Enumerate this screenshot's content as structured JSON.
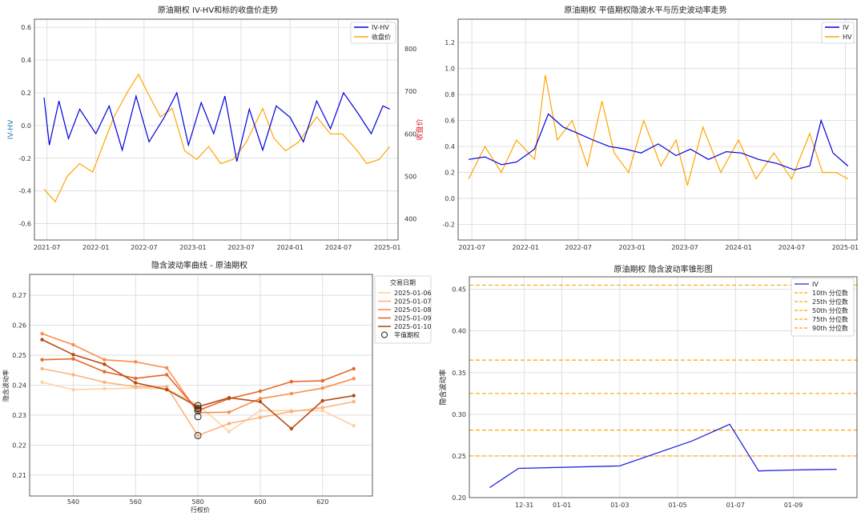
{
  "chart_data": [
    {
      "id": "c1",
      "type": "line",
      "title": "原油期权 IV-HV和标的收盘价走势",
      "ylabel": "IV-HV",
      "ylabel_right": "收盘价",
      "left_ylim": [
        -0.7,
        0.65
      ],
      "right_ylim": [
        350,
        870
      ],
      "left_ticks": [
        -0.6,
        -0.4,
        -0.2,
        0.0,
        0.2,
        0.4,
        0.6
      ],
      "right_ticks": [
        400,
        500,
        600,
        700,
        800
      ],
      "left_tick_labels": [
        "-0.6",
        "-0.4",
        "-0.2",
        "0.0",
        "0.2",
        "0.4",
        "0.6"
      ],
      "right_tick_labels": [
        "400",
        "500",
        "600",
        "700",
        "800"
      ],
      "x_tick_labels": [
        "2021-07",
        "2022-01",
        "2022-07",
        "2023-01",
        "2023-07",
        "2024-01",
        "2024-07",
        "2025-01"
      ],
      "legend": {
        "placement": "top-right",
        "entries": [
          "IV-HV",
          "收盘价"
        ]
      },
      "colors": {
        "iv_hv": "#0000dd",
        "close": "#ffa500",
        "left_axis": "#1f77b4",
        "right_axis": "#d62728"
      },
      "grid": true,
      "series": [
        {
          "name": "IV-HV",
          "axis": "left",
          "x": [
            "2021-06-20",
            "2021-07-10",
            "2021-08-15",
            "2021-09-20",
            "2021-11-01",
            "2022-01-01",
            "2022-02-20",
            "2022-04-10",
            "2022-06-01",
            "2022-07-20",
            "2022-09-15",
            "2022-11-01",
            "2022-12-15",
            "2023-02-01",
            "2023-03-20",
            "2023-05-01",
            "2023-06-15",
            "2023-08-01",
            "2023-09-20",
            "2023-11-10",
            "2024-01-01",
            "2024-02-20",
            "2024-04-10",
            "2024-06-01",
            "2024-07-20",
            "2024-09-10",
            "2024-11-01",
            "2024-12-15",
            "2025-01-10"
          ],
          "y": [
            0.17,
            -0.12,
            0.15,
            -0.08,
            0.1,
            -0.05,
            0.12,
            -0.15,
            0.18,
            -0.1,
            0.05,
            0.2,
            -0.12,
            0.14,
            -0.05,
            0.18,
            -0.22,
            0.1,
            -0.15,
            0.12,
            0.05,
            -0.1,
            0.15,
            -0.02,
            0.2,
            0.08,
            -0.05,
            0.12,
            0.1
          ]
        },
        {
          "name": "收盘价",
          "axis": "right",
          "x": [
            "2021-06-20",
            "2021-08-01",
            "2021-09-15",
            "2021-11-01",
            "2021-12-20",
            "2022-02-01",
            "2022-03-10",
            "2022-05-01",
            "2022-06-10",
            "2022-07-20",
            "2022-09-01",
            "2022-10-15",
            "2022-12-01",
            "2023-01-15",
            "2023-03-01",
            "2023-04-15",
            "2023-06-01",
            "2023-07-20",
            "2023-09-20",
            "2023-11-01",
            "2023-12-15",
            "2024-02-01",
            "2024-04-10",
            "2024-06-01",
            "2024-07-15",
            "2024-09-10",
            "2024-10-15",
            "2024-12-01",
            "2025-01-10"
          ],
          "y": [
            470,
            440,
            500,
            530,
            510,
            580,
            640,
            700,
            740,
            690,
            640,
            660,
            560,
            540,
            570,
            530,
            540,
            580,
            660,
            590,
            560,
            580,
            640,
            600,
            600,
            560,
            530,
            540,
            570
          ]
        }
      ]
    },
    {
      "id": "c2",
      "type": "line",
      "title": "原油期权 平值期权隐波水平与历史波动率走势",
      "ylim": [
        -0.32,
        1.38
      ],
      "y_ticks": [
        -0.2,
        0.0,
        0.2,
        0.4,
        0.6,
        0.8,
        1.0,
        1.2
      ],
      "y_tick_labels": [
        "-0.2",
        "0.0",
        "0.2",
        "0.4",
        "0.6",
        "0.8",
        "1.0",
        "1.2"
      ],
      "x_tick_labels": [
        "2021-07",
        "2022-01",
        "2022-07",
        "2023-01",
        "2023-07",
        "2024-01",
        "2024-07",
        "2025-01"
      ],
      "legend": {
        "placement": "top-right",
        "entries": [
          "IV",
          "HV"
        ]
      },
      "colors": {
        "iv": "#0000dd",
        "hv": "#ffa500"
      },
      "grid": true,
      "series": [
        {
          "name": "IV",
          "x": [
            "2021-06-20",
            "2021-08-15",
            "2021-10-10",
            "2021-12-01",
            "2022-02-01",
            "2022-03-20",
            "2022-05-10",
            "2022-07-01",
            "2022-08-20",
            "2022-10-15",
            "2022-12-10",
            "2023-02-01",
            "2023-04-01",
            "2023-06-01",
            "2023-07-20",
            "2023-09-20",
            "2023-11-20",
            "2024-01-10",
            "2024-03-10",
            "2024-05-10",
            "2024-07-10",
            "2024-09-01",
            "2024-10-10",
            "2024-11-20",
            "2025-01-10"
          ],
          "y": [
            0.3,
            0.32,
            0.26,
            0.28,
            0.38,
            0.65,
            0.55,
            0.5,
            0.45,
            0.4,
            0.38,
            0.35,
            0.42,
            0.33,
            0.38,
            0.3,
            0.36,
            0.35,
            0.3,
            0.27,
            0.22,
            0.25,
            0.6,
            0.35,
            0.25
          ]
        },
        {
          "name": "HV",
          "x": [
            "2021-06-20",
            "2021-08-15",
            "2021-10-10",
            "2021-12-01",
            "2022-02-01",
            "2022-03-10",
            "2022-04-20",
            "2022-06-10",
            "2022-08-01",
            "2022-09-20",
            "2022-11-01",
            "2022-12-20",
            "2023-02-10",
            "2023-04-10",
            "2023-06-01",
            "2023-07-10",
            "2023-09-01",
            "2023-11-01",
            "2024-01-01",
            "2024-03-01",
            "2024-05-01",
            "2024-07-01",
            "2024-09-01",
            "2024-10-15",
            "2024-12-01",
            "2025-01-10"
          ],
          "y": [
            0.15,
            0.4,
            0.2,
            0.45,
            0.3,
            0.95,
            0.45,
            0.6,
            0.25,
            0.75,
            0.35,
            0.2,
            0.6,
            0.25,
            0.45,
            0.1,
            0.55,
            0.2,
            0.45,
            0.15,
            0.35,
            0.15,
            0.5,
            0.2,
            0.2,
            0.15
          ]
        }
      ]
    },
    {
      "id": "c3",
      "type": "line",
      "title": "隐含波动率曲线 - 原油期权",
      "xlabel": "行权价",
      "ylabel": "隐含波动率",
      "xlim": [
        526,
        636
      ],
      "ylim": [
        0.203,
        0.277
      ],
      "x_ticks": [
        540,
        560,
        580,
        600,
        620
      ],
      "x_tick_labels": [
        "540",
        "560",
        "580",
        "600",
        "620"
      ],
      "y_ticks": [
        0.21,
        0.22,
        0.23,
        0.24,
        0.25,
        0.26,
        0.27
      ],
      "y_tick_labels": [
        "0.21",
        "0.22",
        "0.23",
        "0.24",
        "0.25",
        "0.26",
        "0.27"
      ],
      "legend": {
        "placement": "top-right",
        "title": "交易日期",
        "marker_label": "平值期权"
      },
      "grid": true,
      "x": [
        530,
        540,
        550,
        560,
        570,
        580,
        590,
        600,
        610,
        620,
        630
      ],
      "series": [
        {
          "name": "2025-01-06",
          "color": "#fdd2a5",
          "values": [
            0.241,
            0.2385,
            0.2388,
            0.239,
            0.2388,
            0.2335,
            0.2245,
            0.2315,
            0.2315,
            0.2315,
            0.2265
          ]
        },
        {
          "name": "2025-01-07",
          "color": "#fdb27a",
          "values": [
            0.2455,
            0.2435,
            0.241,
            0.2395,
            0.2395,
            0.2232,
            0.2272,
            0.2292,
            0.2312,
            0.2325,
            0.2345
          ]
        },
        {
          "name": "2025-01-08",
          "color": "#f98e4c",
          "values": [
            0.2572,
            0.2535,
            0.2485,
            0.2478,
            0.2458,
            0.2308,
            0.231,
            0.2355,
            0.2372,
            0.239,
            0.2422
          ]
        },
        {
          "name": "2025-01-09",
          "color": "#e5692b",
          "values": [
            0.2485,
            0.2488,
            0.2445,
            0.2423,
            0.2435,
            0.2315,
            0.2355,
            0.238,
            0.2412,
            0.2415,
            0.2455
          ]
        },
        {
          "name": "2025-01-10",
          "color": "#b84a10",
          "values": [
            0.2552,
            0.2502,
            0.247,
            0.2408,
            0.2385,
            0.2328,
            0.2358,
            0.2345,
            0.2255,
            0.2348,
            0.2365
          ]
        }
      ],
      "atm_points": [
        {
          "x": 580,
          "y": 0.2232
        },
        {
          "x": 580,
          "y": 0.2295
        },
        {
          "x": 580,
          "y": 0.2315
        },
        {
          "x": 580,
          "y": 0.2322
        },
        {
          "x": 580,
          "y": 0.2332
        }
      ]
    },
    {
      "id": "c4",
      "type": "line",
      "title": "原油期权 隐含波动率锥形图",
      "ylabel": "隐含波动率",
      "ylim": [
        0.2,
        0.465
      ],
      "y_ticks": [
        0.2,
        0.25,
        0.3,
        0.35,
        0.4,
        0.45
      ],
      "y_tick_labels": [
        "0.20",
        "0.25",
        "0.30",
        "0.35",
        "0.40",
        "0.45"
      ],
      "x_labels": [
        "12-31",
        "01-01",
        "01-03",
        "01-05",
        "01-07",
        "01-09"
      ],
      "x_label_positions": [
        -0.3,
        1.0,
        3.0,
        5.0,
        7.0,
        9.0
      ],
      "xlim": [
        -2.2,
        11.2
      ],
      "legend": {
        "placement": "top-right",
        "entries": [
          "IV",
          "10th 分位数",
          "25th 分位数",
          "50th 分位数",
          "75th 分位数",
          "90th 分位数"
        ]
      },
      "colors": {
        "iv": "#2222dd",
        "percentile": "#ffa500"
      },
      "grid": true,
      "iv": {
        "x": [
          -1.5,
          -0.5,
          3.0,
          5.5,
          6.8,
          7.8,
          8.8,
          10.5
        ],
        "y": [
          0.212,
          0.235,
          0.238,
          0.268,
          0.288,
          0.232,
          0.233,
          0.234
        ]
      },
      "percentiles": [
        {
          "name": "10th 分位数",
          "value": 0.25
        },
        {
          "name": "25th 分位数",
          "value": 0.281
        },
        {
          "name": "50th 分位数",
          "value": 0.325
        },
        {
          "name": "75th 分位数",
          "value": 0.365
        },
        {
          "name": "90th 分位数",
          "value": 0.455
        }
      ]
    }
  ]
}
